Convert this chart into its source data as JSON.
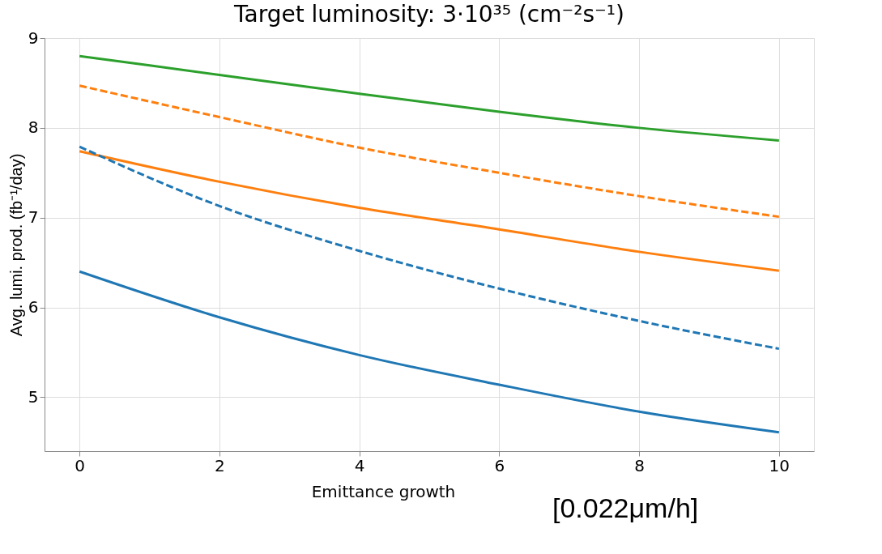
{
  "chart_data": {
    "type": "line",
    "title": "Target luminosity: 3·10³⁵ (cm⁻²s⁻¹)",
    "xlabel": "Emittance growth",
    "ylabel": "Avg. lumi. prod. (fb⁻¹/day)",
    "annotations": [
      "[0.022μm/h]"
    ],
    "x": [
      0,
      2,
      4,
      6,
      8,
      10
    ],
    "series": [
      {
        "color": "#2ca02c",
        "line_style": "solid",
        "values": [
          8.8,
          8.59,
          8.38,
          8.18,
          8.0,
          7.86
        ]
      },
      {
        "color": "#ff7f0e",
        "line_style": "dashed",
        "values": [
          8.47,
          8.12,
          7.78,
          7.5,
          7.24,
          7.01
        ]
      },
      {
        "color": "#ff7f0e",
        "line_style": "solid",
        "values": [
          7.74,
          7.4,
          7.11,
          6.87,
          6.62,
          6.41
        ]
      },
      {
        "color": "#1f77b4",
        "line_style": "dashed",
        "values": [
          7.79,
          7.13,
          6.63,
          6.21,
          5.85,
          5.54
        ]
      },
      {
        "color": "#1f77b4",
        "line_style": "solid",
        "values": [
          6.4,
          5.89,
          5.47,
          5.14,
          4.84,
          4.61
        ]
      }
    ],
    "xlim": [
      -0.5,
      10.5
    ],
    "ylim": [
      4.4,
      9.0
    ],
    "xticks": [
      0,
      2,
      4,
      6,
      8,
      10
    ],
    "yticks": [
      5,
      6,
      7,
      8,
      9
    ],
    "grid": true,
    "marker": "none"
  }
}
